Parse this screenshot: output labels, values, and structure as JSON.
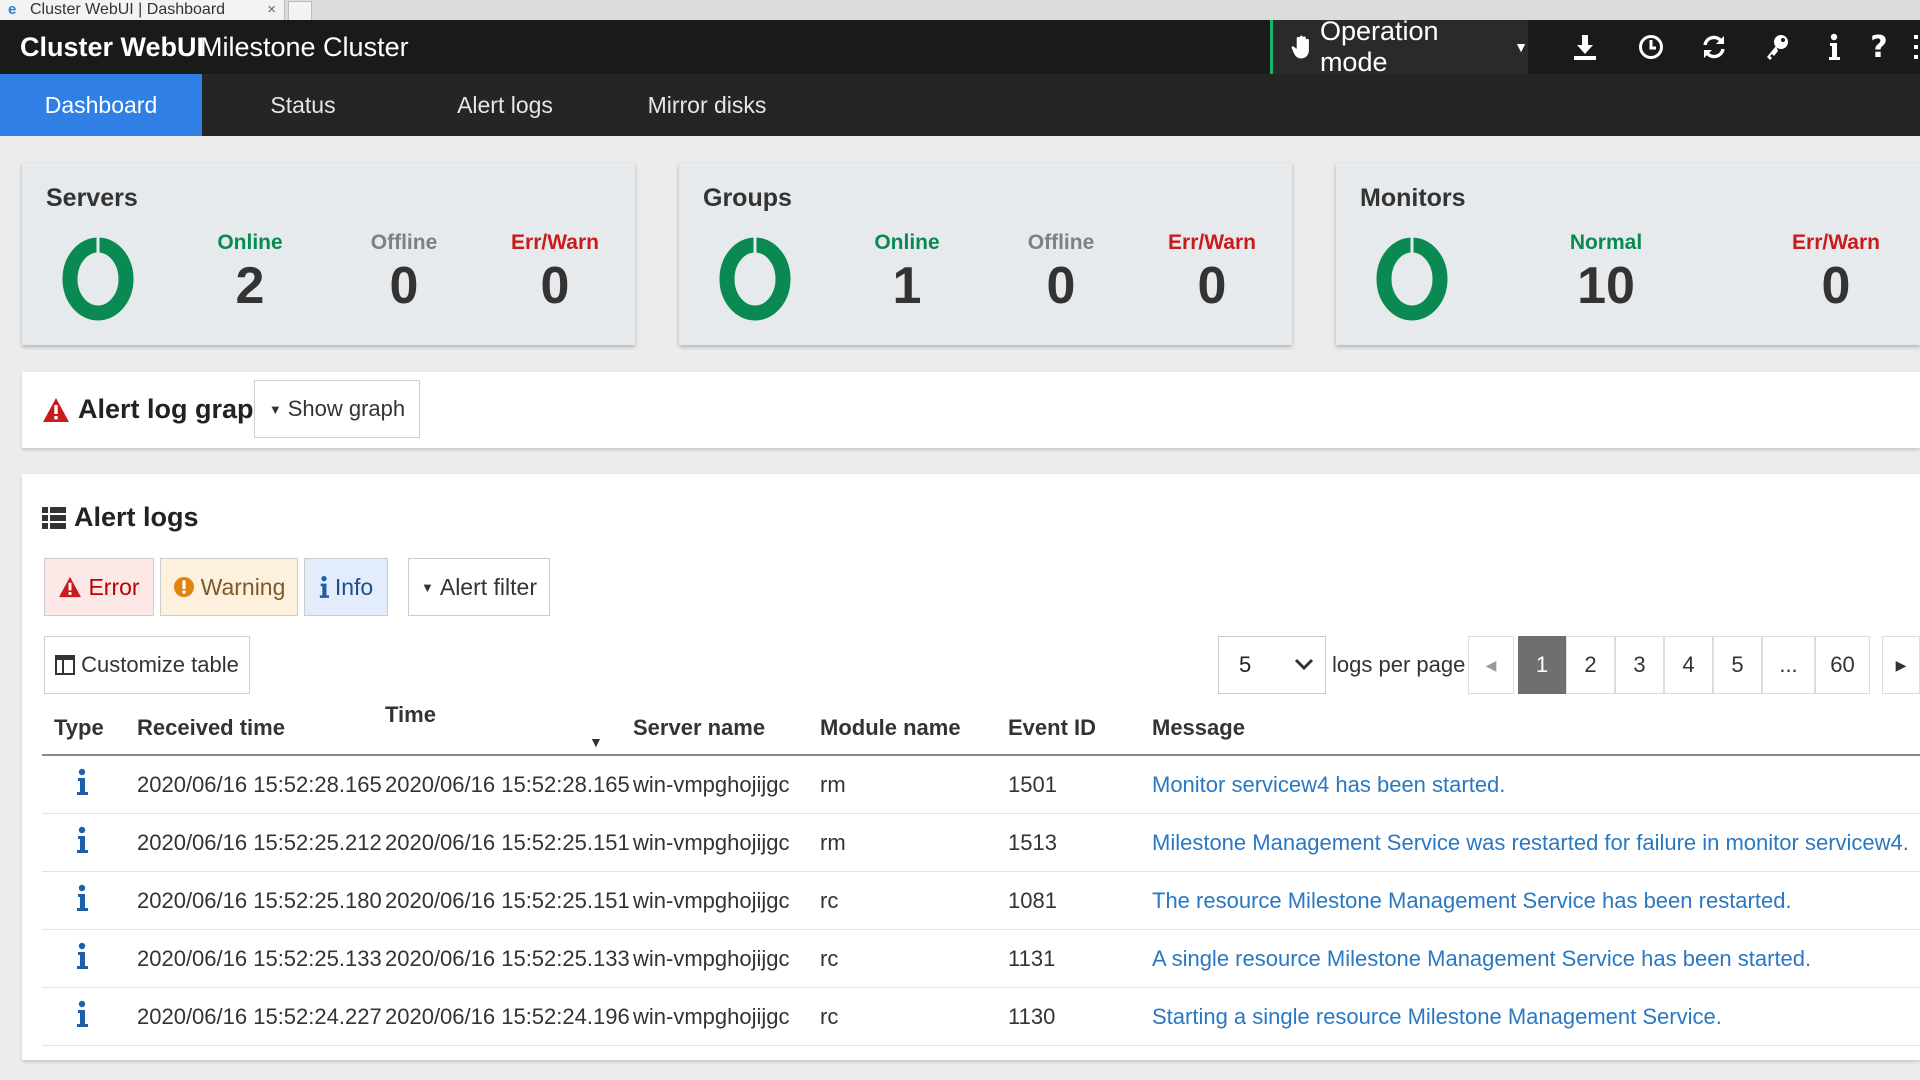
{
  "browser": {
    "tab_title": "Cluster WebUI | Dashboard",
    "close_glyph": "×"
  },
  "header": {
    "brand": "Cluster WebUI",
    "cluster_name": "Milestone Cluster",
    "operation_mode": "Operation mode",
    "accent_color": "#1bb36b",
    "icons": [
      "hand-icon",
      "download-icon",
      "clock-icon",
      "refresh-icon",
      "key-icon",
      "info-icon",
      "help-icon"
    ]
  },
  "nav": {
    "tabs": [
      {
        "label": "Dashboard",
        "active": true
      },
      {
        "label": "Status",
        "active": false
      },
      {
        "label": "Alert logs",
        "active": false
      },
      {
        "label": "Mirror disks",
        "active": false
      }
    ]
  },
  "summary": {
    "servers": {
      "title": "Servers",
      "online_label": "Online",
      "online": "2",
      "offline_label": "Offline",
      "offline": "0",
      "errwarn_label": "Err/Warn",
      "errwarn": "0"
    },
    "groups": {
      "title": "Groups",
      "online_label": "Online",
      "online": "1",
      "offline_label": "Offline",
      "offline": "0",
      "errwarn_label": "Err/Warn",
      "errwarn": "0"
    },
    "monitors": {
      "title": "Monitors",
      "normal_label": "Normal",
      "normal": "10",
      "errwarn_label": "Err/Warn",
      "errwarn": "0"
    }
  },
  "alert_graph": {
    "title": "Alert log graph",
    "show_graph": "Show graph"
  },
  "alert_logs": {
    "title": "Alert logs",
    "filters": {
      "error": "Error",
      "warning": "Warning",
      "info": "Info",
      "alert_filter": "Alert filter"
    },
    "customize": "Customize table",
    "page_size": "5",
    "per_page_label": "logs per page",
    "pages": [
      "1",
      "2",
      "3",
      "4",
      "5",
      "...",
      "60"
    ],
    "current_page": "1",
    "columns": [
      "Type",
      "Received time",
      "Time",
      "Server name",
      "Module name",
      "Event ID",
      "Message"
    ],
    "rows": [
      {
        "type": "info",
        "received": "2020/06/16 15:52:28.165",
        "time": "2020/06/16 15:52:28.165",
        "server": "win-vmpghojijgc",
        "module": "rm",
        "event_id": "1501",
        "message": "Monitor servicew4 has been started."
      },
      {
        "type": "info",
        "received": "2020/06/16 15:52:25.212",
        "time": "2020/06/16 15:52:25.151",
        "server": "win-vmpghojijgc",
        "module": "rm",
        "event_id": "1513",
        "message": "Milestone Management Service was restarted for failure in monitor servicew4."
      },
      {
        "type": "info",
        "received": "2020/06/16 15:52:25.180",
        "time": "2020/06/16 15:52:25.151",
        "server": "win-vmpghojijgc",
        "module": "rc",
        "event_id": "1081",
        "message": "The resource Milestone Management Service has been restarted."
      },
      {
        "type": "info",
        "received": "2020/06/16 15:52:25.133",
        "time": "2020/06/16 15:52:25.133",
        "server": "win-vmpghojijgc",
        "module": "rc",
        "event_id": "1131",
        "message": "A single resource Milestone Management Service has been started."
      },
      {
        "type": "info",
        "received": "2020/06/16 15:52:24.227",
        "time": "2020/06/16 15:52:24.196",
        "server": "win-vmpghojijgc",
        "module": "rc",
        "event_id": "1130",
        "message": "Starting a single resource Milestone Management Service."
      }
    ]
  },
  "colors": {
    "active_tab": "#2f7fe4",
    "online": "#0a8a52",
    "error": "#c81c1c",
    "link": "#2a78c2"
  }
}
